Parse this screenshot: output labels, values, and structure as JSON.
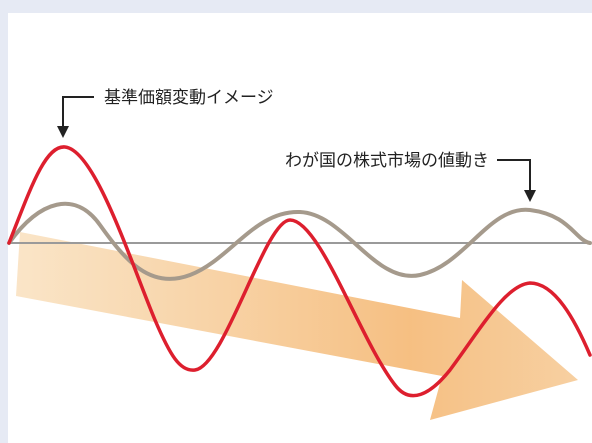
{
  "labels": {
    "nav_wave": "基準価額変動イメージ",
    "market_wave": "わが国の株式市場の値動き"
  },
  "colors": {
    "background": "#e6eaf4",
    "panel": "#ffffff",
    "nav_wave": "#dd1f2e",
    "market_wave": "#a59a8c",
    "axis": "#999999",
    "arrow_start": "#f6d3a8",
    "arrow_end": "#f3b06a"
  }
}
